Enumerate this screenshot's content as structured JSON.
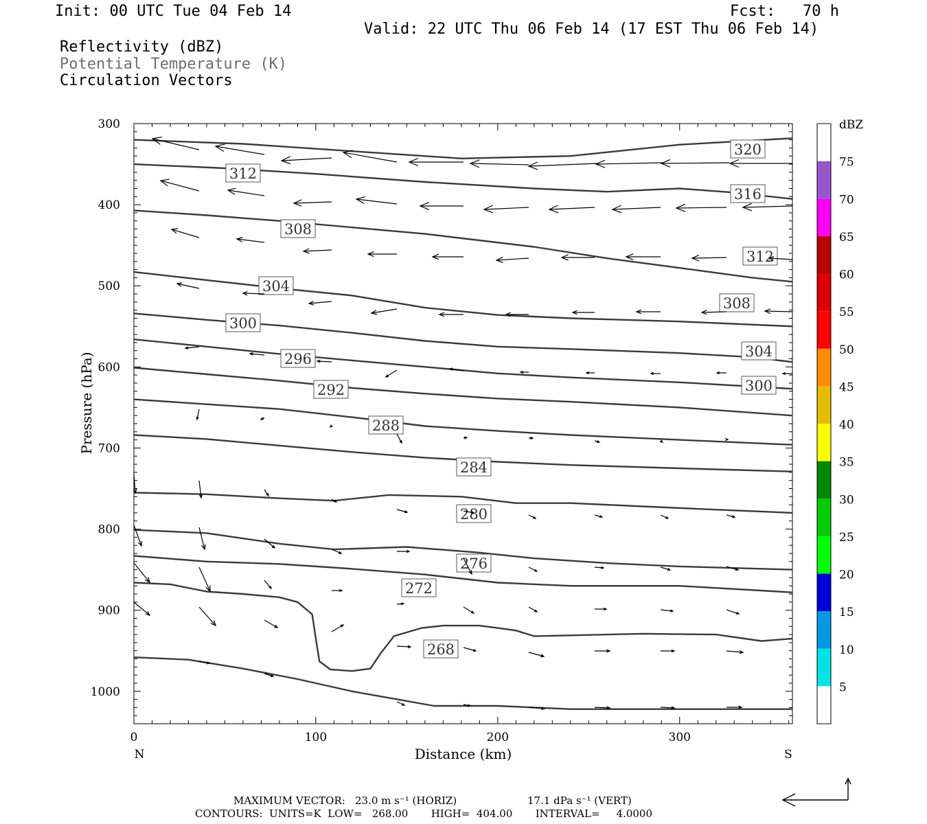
{
  "header": {
    "init": "Init: 00 UTC Tue 04 Feb 14",
    "fcst": "Fcst:   70 h",
    "valid": "Valid: 22 UTC Thu 06 Feb 14 (17 EST Thu 06 Feb 14)",
    "line1": "Reflectivity (dBZ)",
    "line2": "Potential Temperature (K)",
    "line3": "Circulation Vectors"
  },
  "chart_data": {
    "type": "cross-section",
    "xlabel": "Distance (km)",
    "ylabel": "Pressure (hPa)",
    "xlim": [
      0,
      362
    ],
    "ylim": [
      300,
      1040
    ],
    "y_scale": "linear, inverted",
    "x_ticks": [
      "0",
      "100",
      "200",
      "300"
    ],
    "y_ticks": [
      "300",
      "400",
      "500",
      "600",
      "700",
      "800",
      "900",
      "1000"
    ],
    "left_end_label": "N",
    "right_end_label": "S",
    "colorbar": {
      "unit": "dBZ",
      "levels": [
        "5",
        "10",
        "15",
        "20",
        "25",
        "30",
        "35",
        "40",
        "45",
        "50",
        "55",
        "60",
        "65",
        "70",
        "75"
      ],
      "colors": [
        "#ffffff",
        "#00e5e5",
        "#0099e6",
        "#0000dd",
        "#00ff00",
        "#00cc00",
        "#008800",
        "#ffff00",
        "#e5be00",
        "#ff8c00",
        "#ff0000",
        "#dd0000",
        "#bb0000",
        "#ff00ff",
        "#9955cc",
        "#ffffff"
      ]
    },
    "contours": [
      {
        "label": "320",
        "points": [
          [
            0,
            320
          ],
          [
            60,
            325
          ],
          [
            120,
            334
          ],
          [
            180,
            343
          ],
          [
            240,
            340
          ],
          [
            300,
            326
          ],
          [
            362,
            318
          ]
        ]
      },
      {
        "label": "316",
        "points": [
          [
            0,
            350
          ],
          [
            50,
            355
          ],
          [
            100,
            362
          ],
          [
            160,
            372
          ],
          [
            220,
            380
          ],
          [
            260,
            384
          ],
          [
            300,
            380
          ],
          [
            330,
            385
          ],
          [
            362,
            393
          ]
        ]
      },
      {
        "label": "312",
        "points": [
          [
            0,
            407
          ],
          [
            40,
            413
          ],
          [
            80,
            420
          ],
          [
            120,
            428
          ],
          [
            160,
            436
          ],
          [
            220,
            452
          ],
          [
            260,
            466
          ],
          [
            300,
            478
          ],
          [
            340,
            490
          ],
          [
            362,
            495
          ]
        ]
      },
      {
        "label": "308",
        "points": [
          [
            0,
            483
          ],
          [
            40,
            493
          ],
          [
            80,
            503
          ],
          [
            120,
            512
          ],
          [
            160,
            527
          ],
          [
            200,
            536
          ],
          [
            240,
            540
          ],
          [
            300,
            544
          ],
          [
            362,
            550
          ]
        ]
      },
      {
        "label": "304",
        "points": [
          [
            0,
            534
          ],
          [
            40,
            542
          ],
          [
            80,
            549
          ],
          [
            120,
            558
          ],
          [
            160,
            568
          ],
          [
            200,
            575
          ],
          [
            240,
            578
          ],
          [
            300,
            583
          ],
          [
            340,
            588
          ],
          [
            362,
            594
          ]
        ]
      },
      {
        "label": "300",
        "points": [
          [
            0,
            566
          ],
          [
            40,
            575
          ],
          [
            80,
            584
          ],
          [
            120,
            592
          ],
          [
            160,
            600
          ],
          [
            200,
            608
          ],
          [
            240,
            613
          ],
          [
            300,
            619
          ],
          [
            362,
            627
          ]
        ]
      },
      {
        "label": "296",
        "points": [
          [
            0,
            601
          ],
          [
            40,
            609
          ],
          [
            80,
            617
          ],
          [
            120,
            626
          ],
          [
            160,
            633
          ],
          [
            200,
            639
          ],
          [
            240,
            643
          ],
          [
            300,
            650
          ],
          [
            362,
            660
          ]
        ]
      },
      {
        "label": "292",
        "points": [
          [
            0,
            640
          ],
          [
            40,
            646
          ],
          [
            80,
            652
          ],
          [
            120,
            662
          ],
          [
            160,
            673
          ],
          [
            200,
            679
          ],
          [
            240,
            684
          ],
          [
            300,
            690
          ],
          [
            362,
            696
          ]
        ]
      },
      {
        "label": "288",
        "points": [
          [
            0,
            684
          ],
          [
            40,
            689
          ],
          [
            80,
            697
          ],
          [
            120,
            705
          ],
          [
            160,
            712
          ],
          [
            200,
            717
          ],
          [
            240,
            721
          ],
          [
            300,
            725
          ],
          [
            362,
            729
          ]
        ]
      },
      {
        "label": "284",
        "points": [
          [
            0,
            755
          ],
          [
            40,
            757
          ],
          [
            80,
            762
          ],
          [
            110,
            765
          ],
          [
            140,
            758
          ],
          [
            180,
            760
          ],
          [
            210,
            768
          ],
          [
            240,
            768
          ],
          [
            280,
            772
          ],
          [
            320,
            776
          ],
          [
            362,
            780
          ]
        ]
      },
      {
        "label": "280",
        "points": [
          [
            0,
            801
          ],
          [
            40,
            805
          ],
          [
            80,
            818
          ],
          [
            110,
            825
          ],
          [
            150,
            822
          ],
          [
            190,
            829
          ],
          [
            220,
            836
          ],
          [
            260,
            842
          ],
          [
            300,
            846
          ],
          [
            362,
            850
          ]
        ]
      },
      {
        "label": "276",
        "points": [
          [
            0,
            833
          ],
          [
            40,
            840
          ],
          [
            80,
            843
          ],
          [
            120,
            849
          ],
          [
            160,
            856
          ],
          [
            200,
            866
          ],
          [
            240,
            870
          ],
          [
            300,
            870
          ],
          [
            362,
            878
          ]
        ]
      },
      {
        "label": "272",
        "points": [
          [
            0,
            866
          ],
          [
            20,
            868
          ],
          [
            40,
            877
          ],
          [
            60,
            880
          ],
          [
            80,
            884
          ],
          [
            90,
            890
          ],
          [
            98,
            905
          ],
          [
            100,
            935
          ],
          [
            102,
            963
          ],
          [
            108,
            973
          ],
          [
            120,
            975
          ],
          [
            130,
            972
          ],
          [
            136,
            952
          ],
          [
            143,
            932
          ],
          [
            158,
            922
          ],
          [
            170,
            919
          ],
          [
            190,
            919
          ],
          [
            200,
            922
          ],
          [
            210,
            925
          ],
          [
            220,
            932
          ],
          [
            240,
            931
          ],
          [
            280,
            929
          ],
          [
            320,
            930
          ],
          [
            345,
            938
          ],
          [
            362,
            935
          ]
        ]
      },
      {
        "label": "268",
        "points": [
          [
            0,
            958
          ],
          [
            30,
            961
          ],
          [
            60,
            972
          ],
          [
            90,
            985
          ],
          [
            120,
            1000
          ],
          [
            145,
            1010
          ],
          [
            165,
            1018
          ],
          [
            200,
            1018
          ],
          [
            240,
            1022
          ],
          [
            300,
            1022
          ],
          [
            362,
            1022
          ]
        ]
      }
    ],
    "vectors_direction": "westward aloft, weak mixed mid-levels, eastward/downward near surface",
    "footer": {
      "max_vector_label": "MAXIMUM VECTOR:",
      "max_vector_horiz": "23.0 m s⁻¹ (HORIZ)",
      "max_vector_vert": "17.1 dPa s⁻¹ (VERT)",
      "contours_line": "CONTOURS:  UNITS=K  LOW=   268.00       HIGH=  404.00       INTERVAL=     4.0000"
    }
  }
}
